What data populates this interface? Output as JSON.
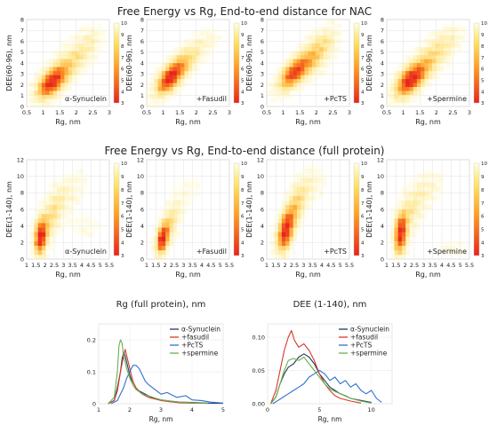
{
  "row1_title": "Free Energy vs Rg, End-to-end distance for NAC",
  "row2_title": "Free Energy vs Rg, End-to-end distance (full protein)",
  "colors": {
    "cbar_top": "#ffffe0",
    "cbar_mid": "#ffd24a",
    "cbar_bottom": "#e8231c",
    "line_synuclein": "#1f3b5e",
    "line_fasudil": "#d6392a",
    "line_pctS": "#2f6fd1",
    "line_spermine": "#6ab04c"
  },
  "chart_data": [
    {
      "type": "heatmap",
      "panel": "nac-synuclein",
      "annotation": "α-Synuclein",
      "xlabel": "Rg, nm",
      "ylabel": "DEE(60-96), nm",
      "xlim": [
        0.5,
        3
      ],
      "ylim": [
        0,
        8
      ],
      "xticks": [
        "0.5",
        "1",
        "1.5",
        "2",
        "2.5",
        "3"
      ],
      "yticks": [
        "0",
        "1",
        "2",
        "3",
        "4",
        "5",
        "6",
        "7",
        "8"
      ],
      "colorbar": {
        "range": [
          3,
          10
        ],
        "ticks": [
          "3",
          "4",
          "5",
          "6",
          "7",
          "8",
          "9",
          "10"
        ]
      },
      "blobs": [
        {
          "cx": 1.25,
          "cy": 2.2,
          "sx": 0.3,
          "sy": 1.0,
          "w": 1.0,
          "rho": 0.55
        },
        {
          "cx": 1.9,
          "cy": 4.2,
          "sx": 0.4,
          "sy": 1.3,
          "w": 0.35,
          "rho": 0.6
        },
        {
          "cx": 2.4,
          "cy": 6.2,
          "sx": 0.25,
          "sy": 0.8,
          "w": 0.12,
          "rho": 0.3
        }
      ]
    },
    {
      "type": "heatmap",
      "panel": "nac-fasudil",
      "annotation": "+Fasudil",
      "xlabel": "Rg, nm",
      "ylabel": "DEE(60-96), nm",
      "xlim": [
        0.5,
        3
      ],
      "ylim": [
        0,
        8
      ],
      "xticks": [
        "0.5",
        "1",
        "1.5",
        "2",
        "2.5",
        "3"
      ],
      "yticks": [
        "0",
        "1",
        "2",
        "3",
        "4",
        "5",
        "6",
        "7",
        "8"
      ],
      "colorbar": {
        "range": [
          3,
          10
        ],
        "ticks": [
          "3",
          "4",
          "5",
          "6",
          "7",
          "8",
          "9",
          "10"
        ]
      },
      "blobs": [
        {
          "cx": 1.2,
          "cy": 2.6,
          "sx": 0.28,
          "sy": 1.0,
          "w": 1.0,
          "rho": 0.6
        },
        {
          "cx": 1.7,
          "cy": 4.3,
          "sx": 0.35,
          "sy": 1.1,
          "w": 0.35,
          "rho": 0.6
        },
        {
          "cx": 2.3,
          "cy": 6.0,
          "sx": 0.25,
          "sy": 0.8,
          "w": 0.1,
          "rho": 0.3
        }
      ]
    },
    {
      "type": "heatmap",
      "panel": "nac-pcts",
      "annotation": "+PcTS",
      "xlabel": "Rg, nm",
      "ylabel": "DEE(60-96), nm",
      "xlim": [
        0.5,
        3
      ],
      "ylim": [
        0,
        8
      ],
      "xticks": [
        "0.5",
        "1",
        "1.5",
        "2",
        "2.5",
        "3"
      ],
      "yticks": [
        "0",
        "1",
        "2",
        "3",
        "4",
        "5",
        "6",
        "7",
        "8"
      ],
      "colorbar": {
        "range": [
          3,
          10
        ],
        "ticks": [
          "3",
          "4",
          "5",
          "6",
          "7",
          "8",
          "9",
          "10"
        ]
      },
      "blobs": [
        {
          "cx": 1.3,
          "cy": 3.0,
          "sx": 0.3,
          "sy": 1.0,
          "w": 0.85,
          "rho": 0.6
        },
        {
          "cx": 1.9,
          "cy": 4.6,
          "sx": 0.35,
          "sy": 1.2,
          "w": 0.45,
          "rho": 0.5
        },
        {
          "cx": 2.3,
          "cy": 6.2,
          "sx": 0.25,
          "sy": 0.8,
          "w": 0.15,
          "rho": 0.3
        }
      ]
    },
    {
      "type": "heatmap",
      "panel": "nac-spermine",
      "annotation": "+Spermine",
      "xlabel": "Rg, nm",
      "ylabel": "DEE(60-96), nm",
      "xlim": [
        0.5,
        3
      ],
      "ylim": [
        0,
        8
      ],
      "xticks": [
        "0.5",
        "1",
        "1.5",
        "2",
        "2.5",
        "3"
      ],
      "yticks": [
        "0",
        "1",
        "2",
        "3",
        "4",
        "5",
        "6",
        "7",
        "8"
      ],
      "colorbar": {
        "range": [
          3,
          10
        ],
        "ticks": [
          "3",
          "4",
          "5",
          "6",
          "7",
          "8",
          "9",
          "10"
        ]
      },
      "blobs": [
        {
          "cx": 1.2,
          "cy": 2.4,
          "sx": 0.3,
          "sy": 1.0,
          "w": 1.0,
          "rho": 0.55
        },
        {
          "cx": 1.8,
          "cy": 4.3,
          "sx": 0.4,
          "sy": 1.3,
          "w": 0.4,
          "rho": 0.6
        },
        {
          "cx": 2.4,
          "cy": 6.2,
          "sx": 0.25,
          "sy": 0.8,
          "w": 0.15,
          "rho": 0.3
        }
      ]
    },
    {
      "type": "heatmap",
      "panel": "full-synuclein",
      "annotation": "α-Synuclein",
      "xlabel": "Rg, nm",
      "ylabel": "DEE(1-140), nm",
      "xlim": [
        1,
        5.5
      ],
      "ylim": [
        0,
        12
      ],
      "xticks": [
        "1",
        "1.5",
        "2",
        "2.5",
        "3",
        "3.5",
        "4",
        "4.5",
        "5",
        "5.5"
      ],
      "yticks": [
        "0",
        "2",
        "4",
        "6",
        "8",
        "10",
        "12"
      ],
      "colorbar": {
        "range": [
          3,
          10
        ],
        "ticks": [
          "3",
          "4",
          "5",
          "6",
          "7",
          "8",
          "9",
          "10"
        ]
      },
      "blobs": [
        {
          "cx": 1.75,
          "cy": 2.6,
          "sx": 0.22,
          "sy": 1.4,
          "w": 1.0,
          "rho": 0.2
        },
        {
          "cx": 2.3,
          "cy": 5.0,
          "sx": 0.45,
          "sy": 2.0,
          "w": 0.35,
          "rho": 0.5
        },
        {
          "cx": 3.3,
          "cy": 8.0,
          "sx": 0.6,
          "sy": 1.5,
          "w": 0.15,
          "rho": 0.5
        },
        {
          "cx": 4.2,
          "cy": 4.0,
          "sx": 0.6,
          "sy": 1.0,
          "w": 0.07,
          "rho": 0.0
        }
      ]
    },
    {
      "type": "heatmap",
      "panel": "full-fasudil",
      "annotation": "+Fasudil",
      "xlabel": "Rg, nm",
      "ylabel": "DEE(1-140), nm",
      "xlim": [
        1,
        5.5
      ],
      "ylim": [
        0,
        12
      ],
      "xticks": [
        "1",
        "1.5",
        "2",
        "2.5",
        "3",
        "3.5",
        "4",
        "4.5",
        "5",
        "5.5"
      ],
      "yticks": [
        "0",
        "2",
        "4",
        "6",
        "8",
        "10",
        "12"
      ],
      "colorbar": {
        "range": [
          3,
          10
        ],
        "ticks": [
          "3",
          "4",
          "5",
          "6",
          "7",
          "8",
          "9",
          "10"
        ]
      },
      "blobs": [
        {
          "cx": 1.85,
          "cy": 2.4,
          "sx": 0.22,
          "sy": 1.2,
          "w": 1.0,
          "rho": 0.3
        },
        {
          "cx": 2.3,
          "cy": 4.5,
          "sx": 0.35,
          "sy": 1.6,
          "w": 0.35,
          "rho": 0.5
        },
        {
          "cx": 3.2,
          "cy": 8.0,
          "sx": 0.5,
          "sy": 1.5,
          "w": 0.07,
          "rho": 0.4
        }
      ]
    },
    {
      "type": "heatmap",
      "panel": "full-pcts",
      "annotation": "+PcTS",
      "xlabel": "Rg, nm",
      "ylabel": "DEE(1-140), nm",
      "xlim": [
        1,
        5.5
      ],
      "ylim": [
        0,
        12
      ],
      "xticks": [
        "1",
        "1.5",
        "2",
        "2.5",
        "3",
        "3.5",
        "4",
        "4.5",
        "5",
        "5.5"
      ],
      "yticks": [
        "0",
        "2",
        "4",
        "6",
        "8",
        "10",
        "12"
      ],
      "colorbar": {
        "range": [
          3,
          10
        ],
        "ticks": [
          "3",
          "4",
          "5",
          "6",
          "7",
          "8",
          "9",
          "10"
        ]
      },
      "blobs": [
        {
          "cx": 2.0,
          "cy": 3.2,
          "sx": 0.3,
          "sy": 1.6,
          "w": 0.9,
          "rho": 0.4
        },
        {
          "cx": 2.5,
          "cy": 6.0,
          "sx": 0.45,
          "sy": 2.0,
          "w": 0.45,
          "rho": 0.6
        },
        {
          "cx": 3.4,
          "cy": 9.0,
          "sx": 0.5,
          "sy": 1.2,
          "w": 0.15,
          "rho": 0.3
        }
      ]
    },
    {
      "type": "heatmap",
      "panel": "full-spermine",
      "annotation": "+Spermine",
      "xlabel": "Rg, nm",
      "ylabel": "DEE(1-140), nm",
      "xlim": [
        1,
        5.5
      ],
      "ylim": [
        0,
        12
      ],
      "xticks": [
        "1",
        "1.5",
        "2",
        "2.5",
        "3",
        "3.5",
        "4",
        "4.5",
        "5",
        "5.5"
      ],
      "yticks": [
        "0",
        "2",
        "4",
        "6",
        "8",
        "10",
        "12"
      ],
      "colorbar": {
        "range": [
          3,
          10
        ],
        "ticks": [
          "3",
          "4",
          "5",
          "6",
          "7",
          "8",
          "9",
          "10"
        ]
      },
      "blobs": [
        {
          "cx": 1.75,
          "cy": 3.0,
          "sx": 0.22,
          "sy": 1.6,
          "w": 1.0,
          "rho": 0.2
        },
        {
          "cx": 2.3,
          "cy": 5.8,
          "sx": 0.5,
          "sy": 2.0,
          "w": 0.3,
          "rho": 0.5
        },
        {
          "cx": 3.3,
          "cy": 8.5,
          "sx": 0.5,
          "sy": 1.2,
          "w": 0.12,
          "rho": 0.3
        },
        {
          "cx": 4.6,
          "cy": 1.2,
          "sx": 0.6,
          "sy": 0.6,
          "w": 0.08,
          "rho": 0.0
        }
      ]
    },
    {
      "type": "line",
      "panel": "rg-distribution",
      "title": "Rg (full protein), nm",
      "xlabel": "Rg, nm",
      "ylabel": "",
      "xlim": [
        1,
        5
      ],
      "ylim": [
        0,
        0.25
      ],
      "xticks": [
        "1",
        "2",
        "3",
        "4",
        "5"
      ],
      "yticks": [
        "0",
        "0.1",
        "0.2"
      ],
      "yticks_values": [
        0,
        0.1,
        0.2
      ],
      "legend_position": "top-right",
      "series": [
        {
          "name": "α-Synuclein",
          "color_key": "line_synuclein",
          "x": [
            1.3,
            1.5,
            1.6,
            1.7,
            1.75,
            1.8,
            1.85,
            1.9,
            2.0,
            2.1,
            2.2,
            2.3,
            2.5,
            2.7,
            3.0,
            3.3,
            3.6,
            4.0,
            4.5,
            5.0
          ],
          "y": [
            0,
            0.01,
            0.05,
            0.1,
            0.14,
            0.16,
            0.15,
            0.13,
            0.09,
            0.06,
            0.045,
            0.04,
            0.03,
            0.02,
            0.012,
            0.008,
            0.005,
            0.004,
            0.002,
            0.001
          ]
        },
        {
          "name": "+fasudil",
          "color_key": "line_fasudil",
          "x": [
            1.3,
            1.5,
            1.6,
            1.7,
            1.8,
            1.85,
            1.9,
            2.0,
            2.1,
            2.2,
            2.4,
            2.6,
            2.8,
            3.0,
            3.3,
            3.6,
            4.0,
            4.5
          ],
          "y": [
            0,
            0.01,
            0.04,
            0.1,
            0.15,
            0.17,
            0.15,
            0.11,
            0.07,
            0.05,
            0.03,
            0.02,
            0.015,
            0.01,
            0.006,
            0.003,
            0.002,
            0.001
          ]
        },
        {
          "name": "+PcTS",
          "color_key": "line_pctS",
          "x": [
            1.4,
            1.6,
            1.8,
            1.9,
            2.0,
            2.1,
            2.2,
            2.3,
            2.4,
            2.5,
            2.6,
            2.8,
            3.0,
            3.2,
            3.5,
            3.8,
            4.0,
            4.3,
            4.6,
            5.0
          ],
          "y": [
            0,
            0.01,
            0.05,
            0.08,
            0.1,
            0.12,
            0.12,
            0.11,
            0.09,
            0.07,
            0.06,
            0.045,
            0.03,
            0.035,
            0.02,
            0.025,
            0.012,
            0.01,
            0.005,
            0.002
          ]
        },
        {
          "name": "+spermine",
          "color_key": "line_spermine",
          "x": [
            1.3,
            1.5,
            1.6,
            1.65,
            1.7,
            1.75,
            1.8,
            1.9,
            2.0,
            2.1,
            2.2,
            2.4,
            2.6,
            2.8,
            3.0,
            3.3,
            3.6,
            4.0,
            4.5
          ],
          "y": [
            0,
            0.02,
            0.1,
            0.18,
            0.2,
            0.19,
            0.15,
            0.11,
            0.08,
            0.06,
            0.045,
            0.03,
            0.025,
            0.018,
            0.012,
            0.008,
            0.005,
            0.003,
            0.001
          ]
        }
      ]
    },
    {
      "type": "line",
      "panel": "dee-distribution",
      "title": "DEE (1-140), nm",
      "xlabel": "Rg, nm",
      "ylabel": "",
      "xlim": [
        0,
        12
      ],
      "ylim": [
        0,
        0.12
      ],
      "xticks": [
        "0",
        "5",
        "10"
      ],
      "xticks_values": [
        0,
        5,
        10
      ],
      "yticks": [
        "0.00",
        "0.05",
        "0.10"
      ],
      "yticks_values": [
        0,
        0.05,
        0.1
      ],
      "legend_position": "top-right",
      "series": [
        {
          "name": "α-Synuclein",
          "color_key": "line_synuclein",
          "x": [
            0.3,
            0.8,
            1.2,
            1.6,
            2.0,
            2.5,
            3.0,
            3.5,
            4.0,
            4.5,
            5.0,
            5.5,
            6.0,
            6.5,
            7.0,
            7.5,
            8.0,
            9.0,
            10.0
          ],
          "y": [
            0,
            0.01,
            0.03,
            0.045,
            0.055,
            0.06,
            0.07,
            0.075,
            0.07,
            0.06,
            0.045,
            0.035,
            0.025,
            0.02,
            0.015,
            0.012,
            0.008,
            0.005,
            0.002
          ]
        },
        {
          "name": "+fasudil",
          "color_key": "line_fasudil",
          "x": [
            0.3,
            0.8,
            1.2,
            1.6,
            2.0,
            2.3,
            2.6,
            3.0,
            3.5,
            4.0,
            4.5,
            5.0,
            5.5,
            6.0,
            6.5,
            7.0,
            8.0,
            9.0
          ],
          "y": [
            0,
            0.02,
            0.05,
            0.08,
            0.1,
            0.11,
            0.095,
            0.085,
            0.09,
            0.08,
            0.065,
            0.045,
            0.03,
            0.02,
            0.012,
            0.008,
            0.004,
            0.001
          ]
        },
        {
          "name": "+PcTS",
          "color_key": "line_pctS",
          "x": [
            0.5,
            1.0,
            1.5,
            2.0,
            2.5,
            3.0,
            3.5,
            4.0,
            4.5,
            5.0,
            5.5,
            6.0,
            6.5,
            7.0,
            7.5,
            8.0,
            8.5,
            9.0,
            9.5,
            10.0,
            10.5,
            11.0
          ],
          "y": [
            0,
            0.005,
            0.01,
            0.015,
            0.02,
            0.025,
            0.03,
            0.04,
            0.045,
            0.05,
            0.045,
            0.035,
            0.04,
            0.03,
            0.035,
            0.025,
            0.03,
            0.02,
            0.015,
            0.02,
            0.008,
            0.002
          ]
        },
        {
          "name": "+spermine",
          "color_key": "line_spermine",
          "x": [
            0.3,
            0.8,
            1.2,
            1.6,
            2.0,
            2.5,
            3.0,
            3.5,
            4.0,
            4.5,
            5.0,
            5.5,
            6.0,
            7.0,
            8.0,
            9.0,
            10.0
          ],
          "y": [
            0,
            0.01,
            0.03,
            0.05,
            0.065,
            0.068,
            0.065,
            0.07,
            0.06,
            0.05,
            0.04,
            0.03,
            0.022,
            0.015,
            0.008,
            0.004,
            0.001
          ]
        }
      ]
    }
  ]
}
